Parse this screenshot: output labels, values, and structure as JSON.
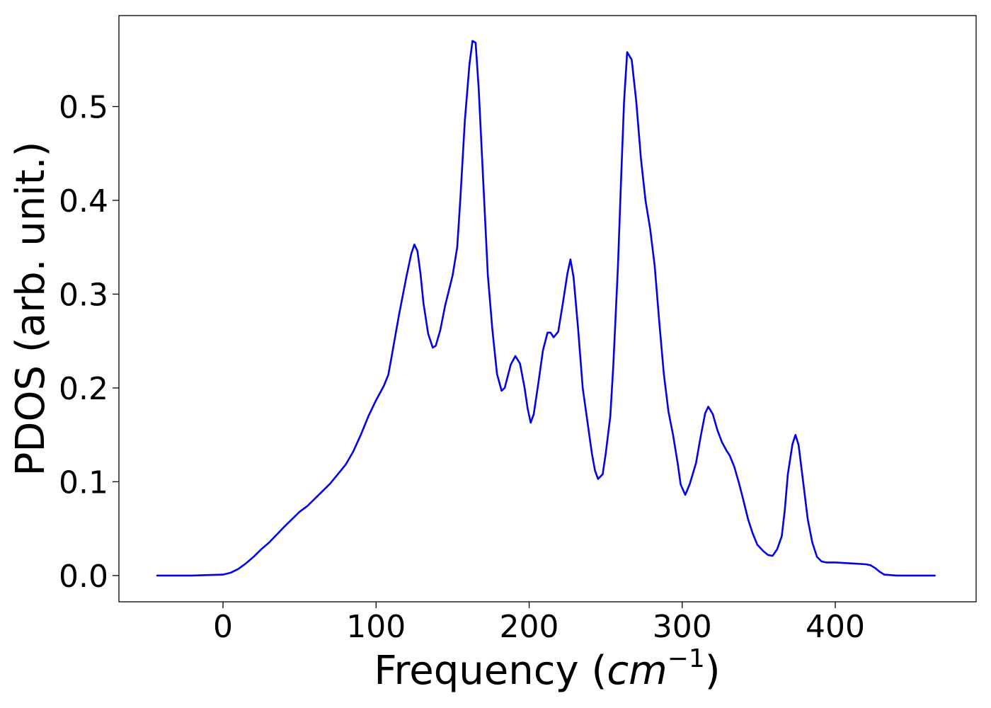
{
  "chart_data": {
    "type": "line",
    "xlabel": "Frequency (",
    "xlabel_unit": "cm",
    "xlabel_exponent": "−1",
    "xlabel_close": ")",
    "ylabel": "PDOS (arb. unit.)",
    "xlim": [
      -68,
      492
    ],
    "ylim": [
      -0.028,
      0.597
    ],
    "xticks": [
      0,
      100,
      200,
      300,
      400
    ],
    "xtick_labels": [
      "0",
      "100",
      "200",
      "300",
      "400"
    ],
    "yticks": [
      0.0,
      0.1,
      0.2,
      0.3,
      0.4,
      0.5
    ],
    "ytick_labels": [
      "0.0",
      "0.1",
      "0.2",
      "0.3",
      "0.4",
      "0.5"
    ],
    "grid": false,
    "line_color": "#0000ee",
    "series": [
      {
        "x": [
          -43,
          -20,
          0,
          5,
          10,
          15,
          20,
          25,
          30,
          40,
          50,
          55,
          60,
          70,
          80,
          85,
          90,
          95,
          100,
          105,
          108,
          110,
          115,
          120,
          123,
          125,
          127,
          129,
          131,
          134,
          137,
          139,
          142,
          145,
          150,
          153,
          155,
          158,
          161,
          163,
          165,
          167,
          170,
          173,
          176,
          179,
          182,
          184,
          188,
          191,
          194,
          197,
          199,
          201,
          203,
          206,
          209,
          212,
          214,
          216,
          219,
          222,
          225,
          227,
          229,
          232,
          235,
          238,
          241,
          243,
          245,
          248,
          250,
          253,
          255,
          258,
          260,
          262,
          264,
          267,
          270,
          273,
          276,
          279,
          282,
          285,
          288,
          291,
          294,
          297,
          299,
          302,
          305,
          309,
          312,
          315,
          317,
          320,
          323,
          326,
          329,
          331,
          334,
          337,
          340,
          343,
          346,
          349,
          353,
          356,
          359,
          362,
          365,
          367,
          369,
          372,
          374,
          376,
          379,
          382,
          385,
          388,
          391,
          394,
          400,
          410,
          420,
          423,
          426,
          429,
          432,
          440,
          450,
          465
        ],
        "y": [
          0.0,
          0.0,
          0.001,
          0.003,
          0.007,
          0.013,
          0.02,
          0.028,
          0.035,
          0.052,
          0.068,
          0.074,
          0.082,
          0.098,
          0.118,
          0.132,
          0.15,
          0.17,
          0.187,
          0.202,
          0.214,
          0.232,
          0.278,
          0.32,
          0.343,
          0.353,
          0.346,
          0.322,
          0.29,
          0.258,
          0.243,
          0.245,
          0.262,
          0.287,
          0.32,
          0.35,
          0.4,
          0.485,
          0.545,
          0.57,
          0.568,
          0.52,
          0.42,
          0.32,
          0.262,
          0.215,
          0.197,
          0.2,
          0.225,
          0.234,
          0.226,
          0.2,
          0.178,
          0.163,
          0.172,
          0.205,
          0.24,
          0.259,
          0.259,
          0.254,
          0.26,
          0.29,
          0.322,
          0.337,
          0.318,
          0.262,
          0.2,
          0.165,
          0.13,
          0.112,
          0.103,
          0.108,
          0.13,
          0.17,
          0.225,
          0.33,
          0.42,
          0.505,
          0.558,
          0.55,
          0.505,
          0.445,
          0.4,
          0.37,
          0.33,
          0.27,
          0.215,
          0.175,
          0.15,
          0.12,
          0.097,
          0.086,
          0.098,
          0.12,
          0.148,
          0.173,
          0.18,
          0.172,
          0.155,
          0.142,
          0.133,
          0.128,
          0.116,
          0.099,
          0.08,
          0.06,
          0.045,
          0.033,
          0.026,
          0.022,
          0.021,
          0.028,
          0.042,
          0.07,
          0.108,
          0.14,
          0.15,
          0.139,
          0.1,
          0.06,
          0.035,
          0.02,
          0.015,
          0.014,
          0.014,
          0.013,
          0.012,
          0.011,
          0.008,
          0.004,
          0.001,
          0.0,
          0.0,
          0.0
        ]
      }
    ]
  }
}
